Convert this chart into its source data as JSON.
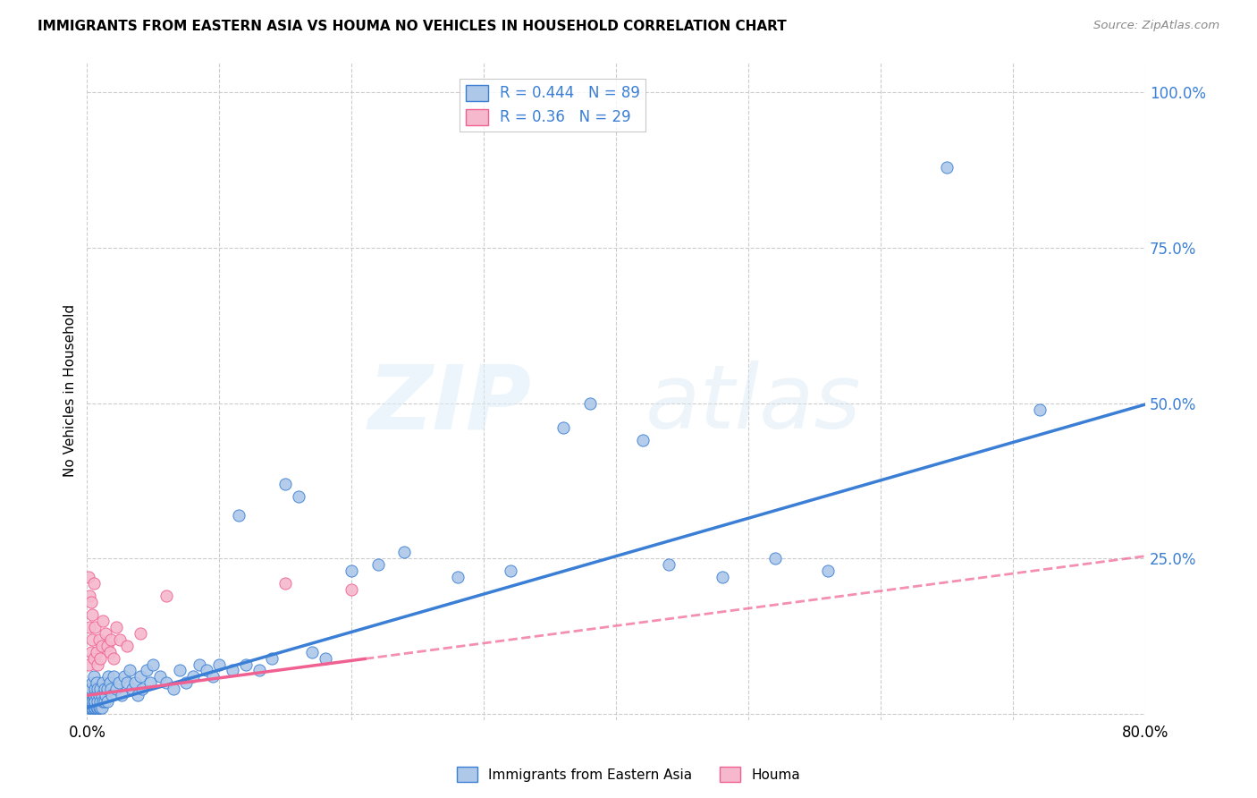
{
  "title": "IMMIGRANTS FROM EASTERN ASIA VS HOUMA NO VEHICLES IN HOUSEHOLD CORRELATION CHART",
  "source": "Source: ZipAtlas.com",
  "ylabel": "No Vehicles in Household",
  "xlim": [
    0.0,
    0.8
  ],
  "ylim": [
    -0.01,
    1.05
  ],
  "ytick_values": [
    0.0,
    0.25,
    0.5,
    0.75,
    1.0
  ],
  "xtick_values": [
    0.0,
    0.1,
    0.2,
    0.3,
    0.4,
    0.5,
    0.6,
    0.7,
    0.8
  ],
  "blue_R": 0.444,
  "blue_N": 89,
  "pink_R": 0.36,
  "pink_N": 29,
  "blue_color": "#adc8e8",
  "pink_color": "#f5b8cc",
  "blue_line_color": "#3a7fd5",
  "pink_line_color": "#f06090",
  "legend_text_color": "#3a7fd5",
  "blue_line_intercept": 0.01,
  "blue_line_slope": 0.61,
  "pink_line_intercept": 0.03,
  "pink_line_slope": 0.28,
  "pink_line_solid_end": 0.21,
  "blue_x": [
    0.001,
    0.001,
    0.002,
    0.002,
    0.003,
    0.003,
    0.003,
    0.004,
    0.004,
    0.004,
    0.005,
    0.005,
    0.005,
    0.005,
    0.006,
    0.006,
    0.006,
    0.007,
    0.007,
    0.007,
    0.008,
    0.008,
    0.008,
    0.009,
    0.009,
    0.01,
    0.01,
    0.01,
    0.011,
    0.011,
    0.012,
    0.012,
    0.013,
    0.013,
    0.014,
    0.015,
    0.015,
    0.016,
    0.017,
    0.018,
    0.019,
    0.02,
    0.022,
    0.024,
    0.026,
    0.028,
    0.03,
    0.032,
    0.034,
    0.036,
    0.038,
    0.04,
    0.042,
    0.045,
    0.048,
    0.05,
    0.055,
    0.06,
    0.065,
    0.07,
    0.075,
    0.08,
    0.085,
    0.09,
    0.095,
    0.1,
    0.11,
    0.115,
    0.12,
    0.13,
    0.14,
    0.15,
    0.16,
    0.17,
    0.18,
    0.2,
    0.22,
    0.24,
    0.28,
    0.32,
    0.36,
    0.38,
    0.42,
    0.44,
    0.48,
    0.52,
    0.56,
    0.65,
    0.72
  ],
  "blue_y": [
    0.01,
    0.03,
    0.01,
    0.04,
    0.01,
    0.02,
    0.04,
    0.01,
    0.02,
    0.05,
    0.01,
    0.02,
    0.03,
    0.06,
    0.01,
    0.02,
    0.04,
    0.01,
    0.03,
    0.05,
    0.01,
    0.02,
    0.04,
    0.01,
    0.03,
    0.01,
    0.02,
    0.04,
    0.01,
    0.03,
    0.02,
    0.05,
    0.02,
    0.04,
    0.03,
    0.02,
    0.04,
    0.06,
    0.05,
    0.04,
    0.03,
    0.06,
    0.04,
    0.05,
    0.03,
    0.06,
    0.05,
    0.07,
    0.04,
    0.05,
    0.03,
    0.06,
    0.04,
    0.07,
    0.05,
    0.08,
    0.06,
    0.05,
    0.04,
    0.07,
    0.05,
    0.06,
    0.08,
    0.07,
    0.06,
    0.08,
    0.07,
    0.32,
    0.08,
    0.07,
    0.09,
    0.37,
    0.35,
    0.1,
    0.09,
    0.23,
    0.24,
    0.26,
    0.22,
    0.23,
    0.46,
    0.5,
    0.44,
    0.24,
    0.22,
    0.25,
    0.23,
    0.88,
    0.49
  ],
  "pink_x": [
    0.001,
    0.001,
    0.002,
    0.002,
    0.003,
    0.003,
    0.004,
    0.004,
    0.005,
    0.005,
    0.006,
    0.007,
    0.008,
    0.009,
    0.01,
    0.011,
    0.012,
    0.014,
    0.015,
    0.017,
    0.018,
    0.02,
    0.022,
    0.025,
    0.03,
    0.04,
    0.06,
    0.15,
    0.2
  ],
  "pink_y": [
    0.22,
    0.08,
    0.19,
    0.14,
    0.1,
    0.18,
    0.12,
    0.16,
    0.09,
    0.21,
    0.14,
    0.1,
    0.08,
    0.12,
    0.09,
    0.11,
    0.15,
    0.13,
    0.11,
    0.1,
    0.12,
    0.09,
    0.14,
    0.12,
    0.11,
    0.13,
    0.19,
    0.21,
    0.2
  ]
}
